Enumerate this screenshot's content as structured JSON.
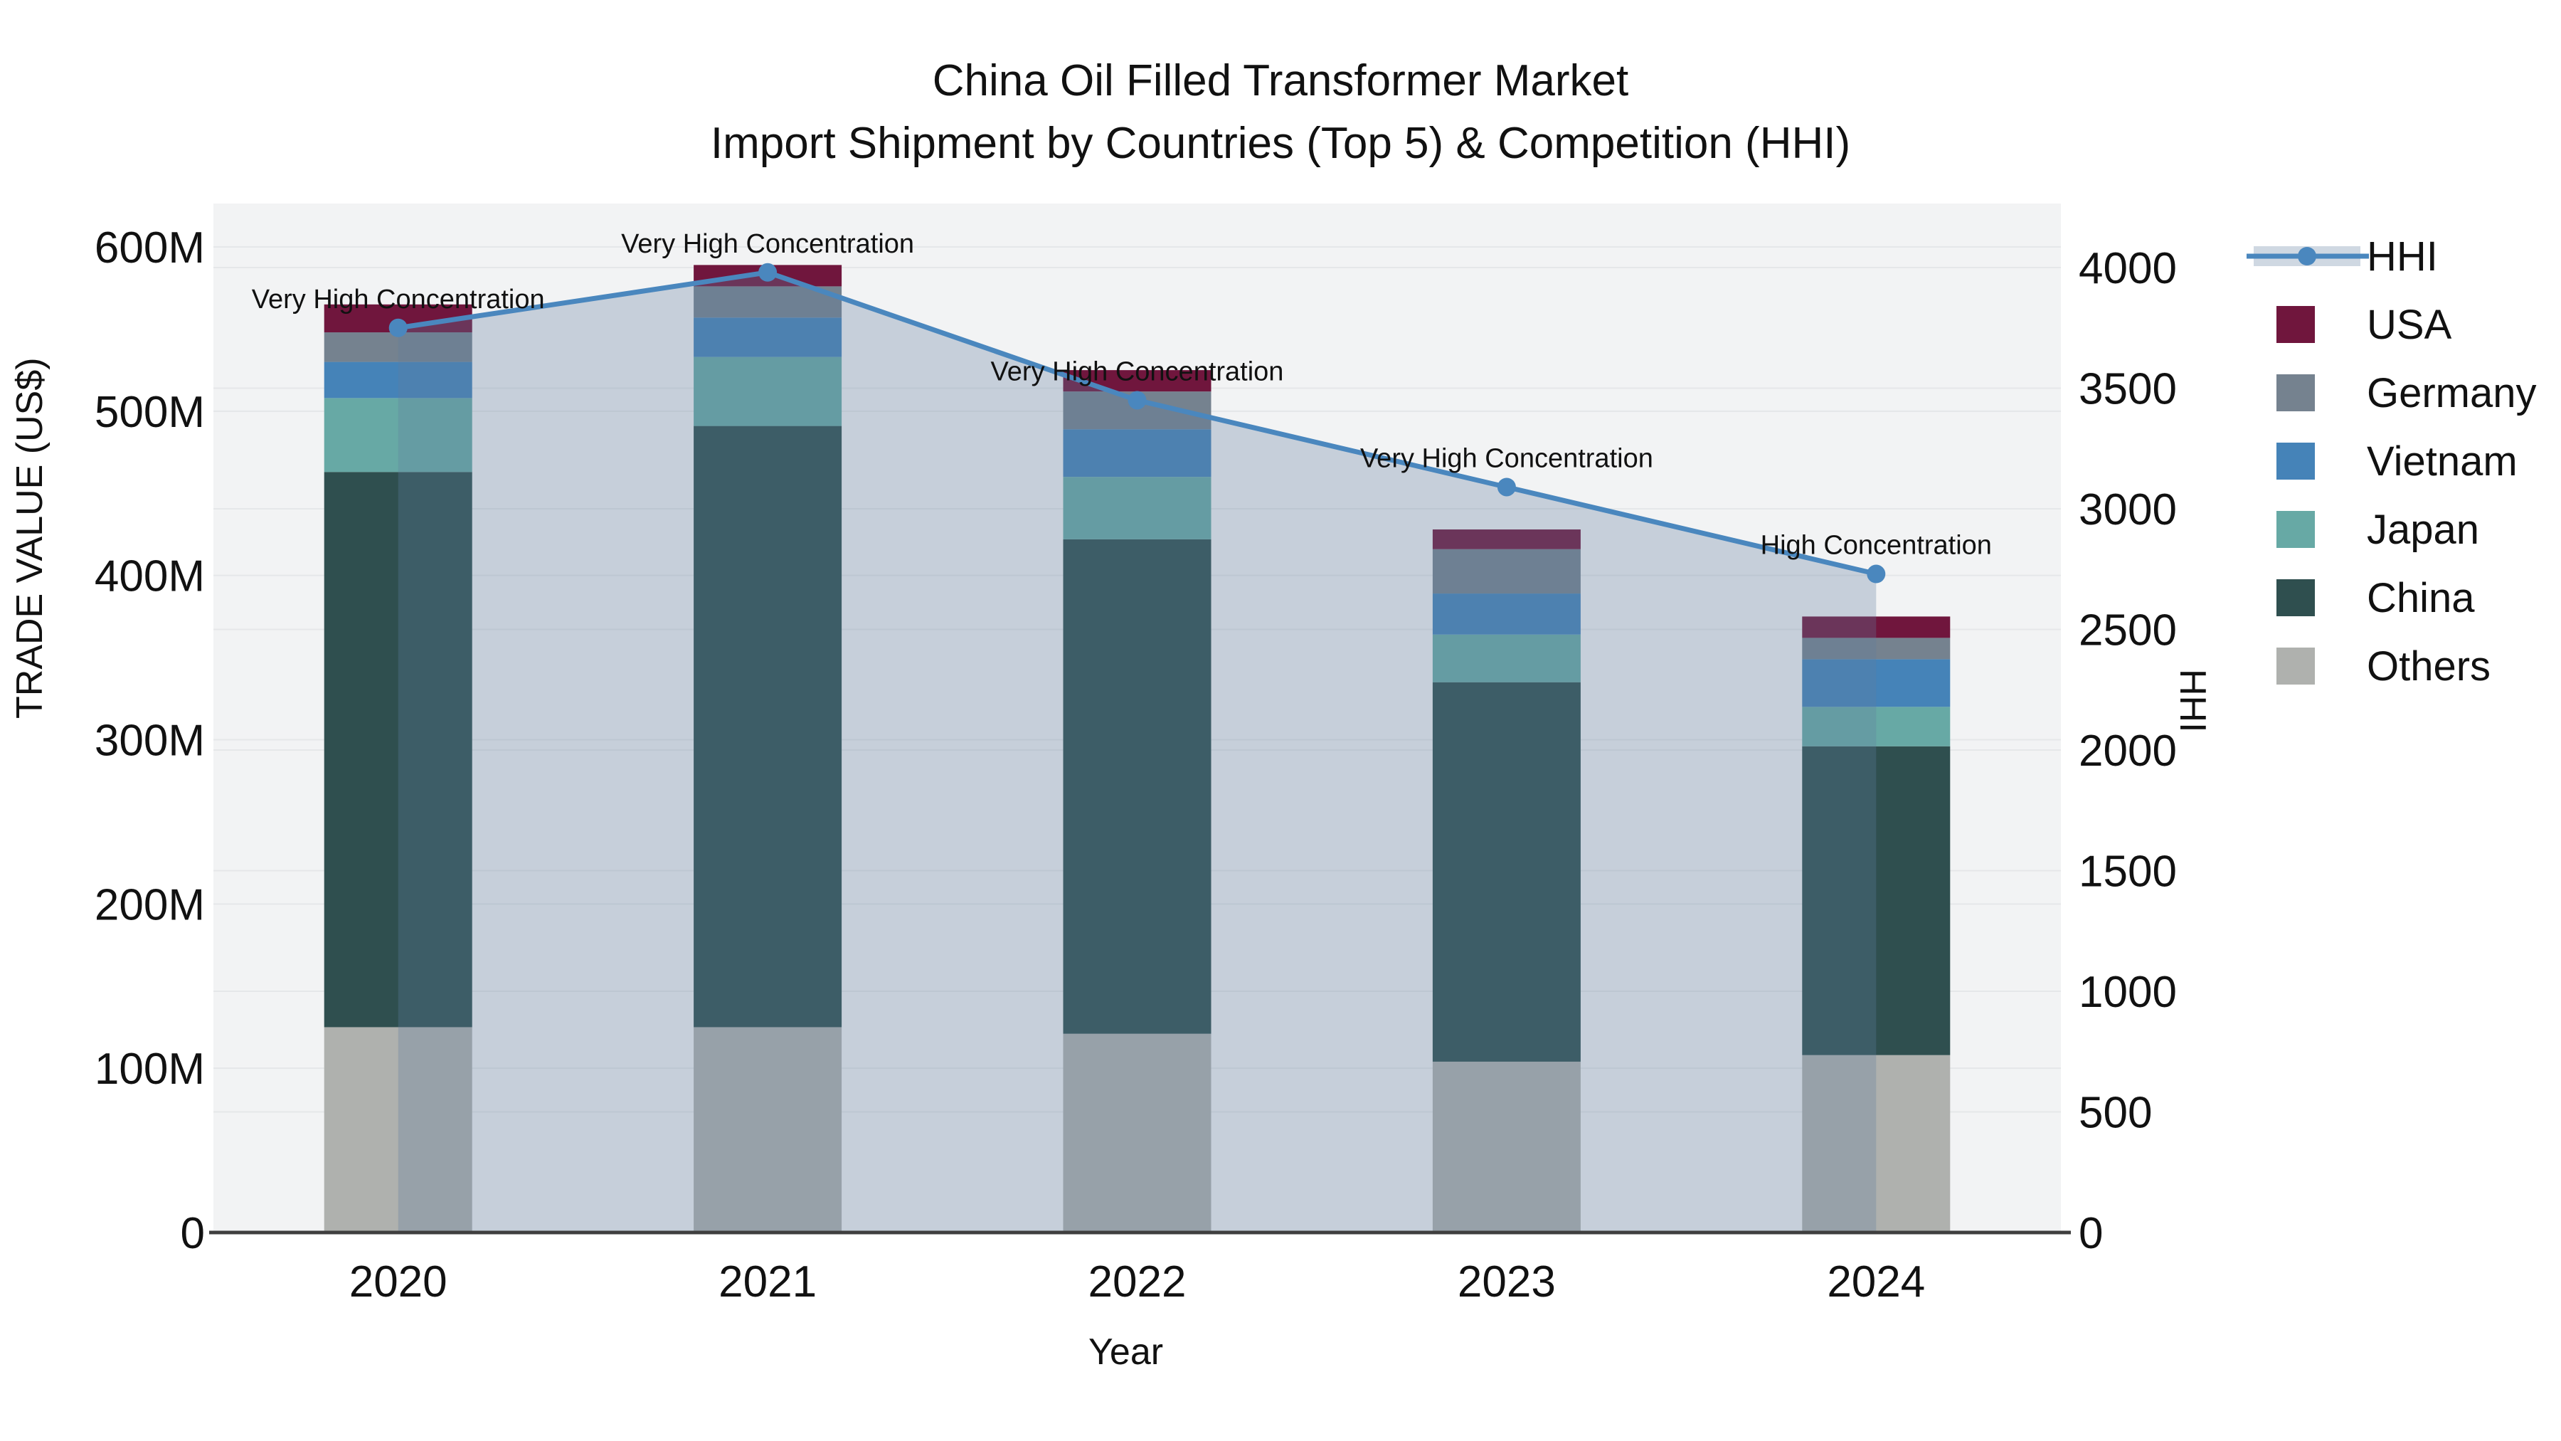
{
  "title": "China Oil Filled Transformer Market",
  "subtitle": "Import Shipment by Countries (Top 5) & Competition (HHI)",
  "colors": {
    "plot_background": "#F2F3F4",
    "grid": "#E5E7E9",
    "axis_line": "#3F3F3F",
    "text": "#111111",
    "hhi_line": "#4A87BE",
    "hhi_fill": "rgba(95,125,160,0.30)"
  },
  "chart_data": {
    "type": "bar+line",
    "title": "China Oil Filled Transformer Market",
    "subtitle": "Import Shipment by Countries (Top 5) & Competition (HHI)",
    "xlabel": "Year",
    "ylabel_left": "TRADE VALUE (US$)",
    "ylabel_right": "HHI",
    "categories": [
      "2020",
      "2021",
      "2022",
      "2023",
      "2024"
    ],
    "units_left": "millions US$",
    "stack_bottom_to_top": [
      "Others",
      "China",
      "Japan",
      "Vietnam",
      "Germany",
      "USA"
    ],
    "series": [
      {
        "name": "USA",
        "color": "#70163D",
        "values": [
          17,
          13,
          13,
          12,
          13
        ]
      },
      {
        "name": "Germany",
        "color": "#75828F",
        "values": [
          18,
          19,
          23,
          27,
          13
        ]
      },
      {
        "name": "Vietnam",
        "color": "#4583B8",
        "values": [
          22,
          24,
          29,
          25,
          29
        ]
      },
      {
        "name": "Japan",
        "color": "#67A9A5",
        "values": [
          45,
          42,
          38,
          29,
          24
        ]
      },
      {
        "name": "China",
        "color": "#2F4F4F",
        "values": [
          338,
          366,
          301,
          231,
          188
        ]
      },
      {
        "name": "Others",
        "color": "#AFB1AE",
        "values": [
          125,
          125,
          121,
          104,
          108
        ]
      }
    ],
    "bar_totals_M": [
      565,
      589,
      525,
      428,
      375
    ],
    "hhi": {
      "name": "HHI",
      "color": "#4A87BE",
      "values": [
        3750,
        3980,
        3450,
        3090,
        2730
      ]
    },
    "annotations": [
      {
        "x": "2020",
        "text": "Very High Concentration"
      },
      {
        "x": "2021",
        "text": "Very High Concentration"
      },
      {
        "x": "2022",
        "text": "Very High Concentration"
      },
      {
        "x": "2023",
        "text": "Very High Concentration"
      },
      {
        "x": "2024",
        "text": "High Concentration"
      }
    ],
    "y_left_axis": {
      "ticks": [
        "0",
        "100M",
        "200M",
        "300M",
        "400M",
        "500M",
        "600M"
      ],
      "tick_values_M": [
        0,
        100,
        200,
        300,
        400,
        500,
        600
      ],
      "range_M": [
        0,
        626
      ]
    },
    "y_right_axis": {
      "ticks": [
        "0",
        "500",
        "1000",
        "1500",
        "2000",
        "2500",
        "3000",
        "3500",
        "4000"
      ],
      "tick_values": [
        0,
        500,
        1000,
        1500,
        2000,
        2500,
        3000,
        3500,
        4000
      ],
      "range": [
        0,
        4265
      ]
    },
    "legend": {
      "position": "right",
      "entries": [
        "HHI",
        "USA",
        "Germany",
        "Vietnam",
        "Japan",
        "China",
        "Others"
      ]
    },
    "grid": true
  }
}
